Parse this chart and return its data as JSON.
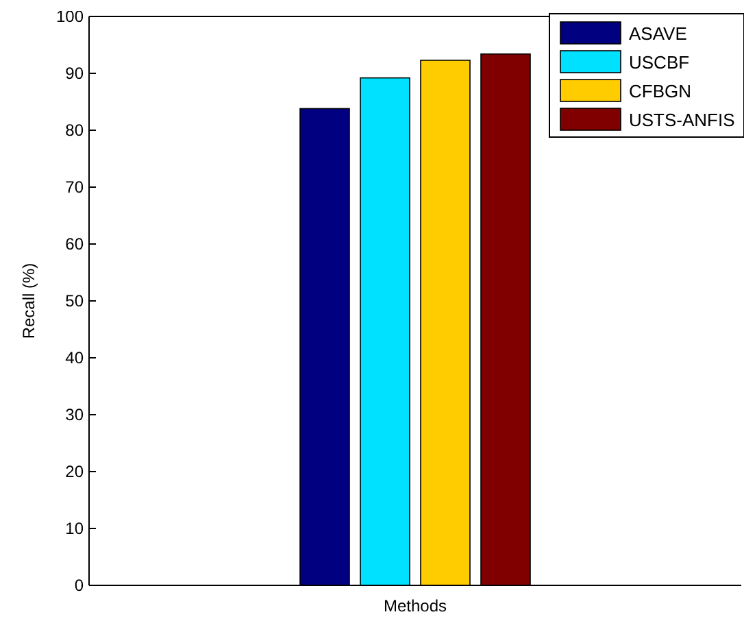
{
  "chart_data": {
    "type": "bar",
    "xlabel": "Methods",
    "ylabel": "Recall (%)",
    "categories": [
      null
    ],
    "series": [
      {
        "name": "ASAVE",
        "color": "#000080",
        "values": [
          83.8
        ]
      },
      {
        "name": "USCBF",
        "color": "#00e0ff",
        "values": [
          89.2
        ]
      },
      {
        "name": "CFBGN",
        "color": "#ffcc00",
        "values": [
          92.3
        ]
      },
      {
        "name": "USTS-ANFIS",
        "color": "#800000",
        "values": [
          93.4
        ]
      }
    ],
    "ylim": [
      0,
      100
    ],
    "yticks": [
      0,
      10,
      20,
      30,
      40,
      50,
      60,
      70,
      80,
      90,
      100
    ],
    "legend": "top right"
  }
}
